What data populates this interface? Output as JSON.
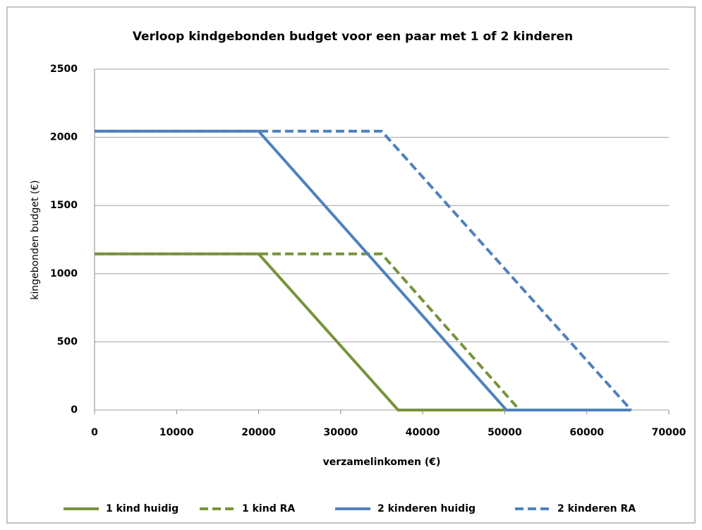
{
  "chart_data": {
    "type": "line",
    "title": "Verloop kindgebonden budget voor een paar met 1 of 2 kinderen",
    "xlabel": "verzamelinkomen (€)",
    "ylabel": "kingebonden budget (€)",
    "xlim": [
      0,
      70000
    ],
    "xticks": [
      0,
      10000,
      20000,
      30000,
      40000,
      50000,
      60000,
      70000
    ],
    "ylim": [
      0,
      2500
    ],
    "yticks": [
      0,
      500,
      1000,
      1500,
      2000,
      2500
    ],
    "grid": true,
    "legend": "bottom",
    "series": [
      {
        "name": "1 kind huidig",
        "color": "#77933c",
        "line_style": "solid",
        "x": [
          0,
          20000,
          37000,
          50000
        ],
        "values": [
          1145,
          1145,
          0,
          0
        ]
      },
      {
        "name": "1 kind RA",
        "color": "#77933c",
        "line_style": "dashed",
        "x": [
          0,
          35000,
          51800
        ],
        "values": [
          1145,
          1145,
          0
        ]
      },
      {
        "name": "2 kinderen huidig",
        "color": "#4f81bd",
        "line_style": "solid",
        "x": [
          0,
          20000,
          50200,
          65400
        ],
        "values": [
          2045,
          2045,
          0,
          0
        ]
      },
      {
        "name": "2 kinderen RA",
        "color": "#4f81bd",
        "line_style": "dashed",
        "x": [
          0,
          35000,
          65400
        ],
        "values": [
          2045,
          2045,
          0
        ]
      }
    ]
  }
}
